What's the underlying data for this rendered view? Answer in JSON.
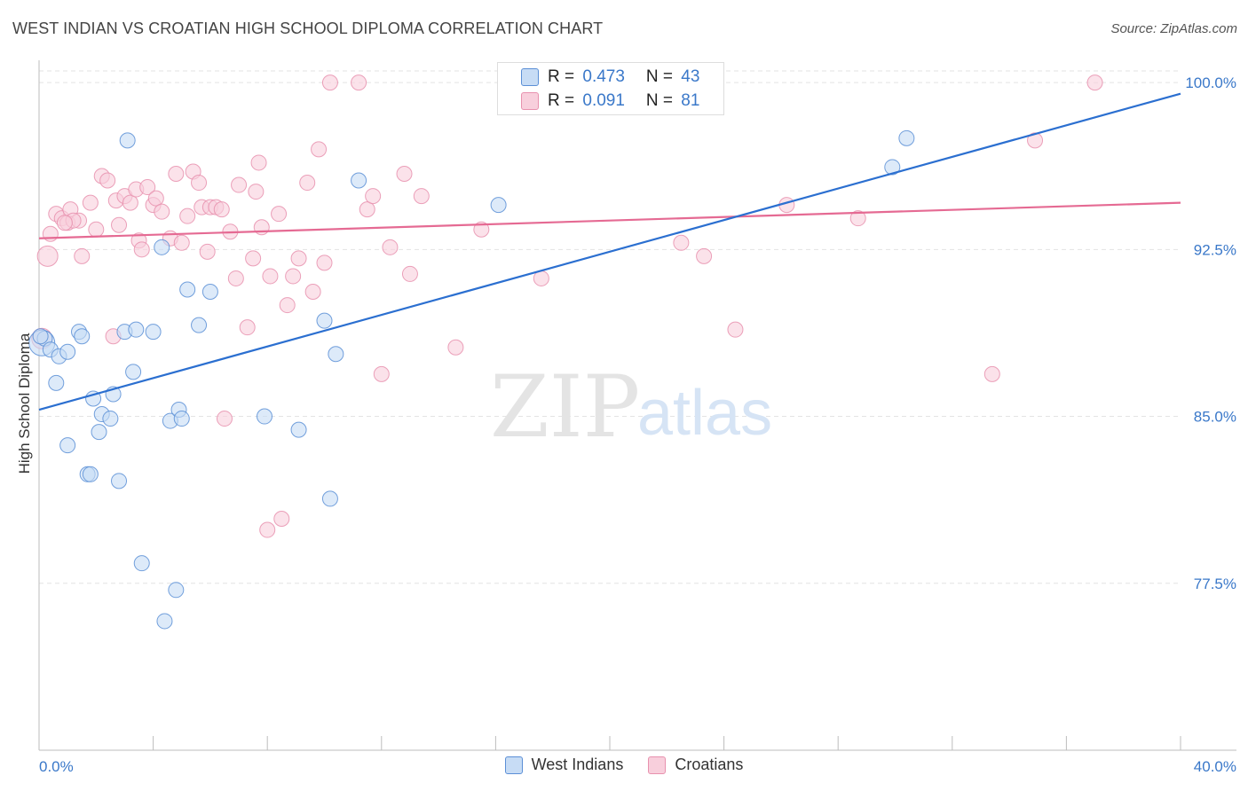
{
  "header": {
    "title": "WEST INDIAN VS CROATIAN HIGH SCHOOL DIPLOMA CORRELATION CHART",
    "source": "Source: ZipAtlas.com"
  },
  "watermark": {
    "zip": "ZIP",
    "atlas": "atlas"
  },
  "legend": {
    "rows": [
      {
        "r_label": "R = ",
        "r_value": "0.473",
        "n_label": "N = ",
        "n_value": "43"
      },
      {
        "r_label": "R = ",
        "r_value": "0.091",
        "n_label": "N = ",
        "n_value": "81"
      }
    ]
  },
  "colors": {
    "west_indians_fill": "#c7dcf5",
    "west_indians_stroke": "#5b8fd6",
    "west_indians_line": "#2b6fd0",
    "croatians_fill": "#f8cfdc",
    "croatians_stroke": "#e891ae",
    "croatians_line": "#e56a93",
    "axis_text": "#3a78c9",
    "grid": "#e3e3e3"
  },
  "chart_data": {
    "type": "scatter",
    "title": "WEST INDIAN VS CROATIAN HIGH SCHOOL DIPLOMA CORRELATION CHART",
    "xlabel": "",
    "ylabel": "High School Diploma",
    "xlim": [
      0.0,
      40.0
    ],
    "ylim": [
      70.0,
      101.0
    ],
    "x_tick_labels": [
      "0.0%",
      "40.0%"
    ],
    "y_ticks": [
      77.5,
      85.0,
      92.5,
      100.0
    ],
    "y_tick_labels": [
      "77.5%",
      "85.0%",
      "92.5%",
      "100.0%"
    ],
    "grid": true,
    "legend_placement": "top-center",
    "series": [
      {
        "name": "West Indians",
        "r": 0.473,
        "n": 43,
        "trend": [
          [
            0.0,
            85.3
          ],
          [
            40.0,
            99.5
          ]
        ],
        "points": [
          [
            0.1,
            88.3,
            3
          ],
          [
            0.2,
            88.5,
            1
          ],
          [
            0.4,
            88.0,
            1
          ],
          [
            0.6,
            86.5,
            1
          ],
          [
            0.7,
            87.7,
            1
          ],
          [
            1.0,
            87.9,
            1
          ],
          [
            1.4,
            88.8,
            1
          ],
          [
            1.5,
            88.6,
            1
          ],
          [
            1.0,
            83.7,
            1
          ],
          [
            1.7,
            82.4,
            1
          ],
          [
            1.8,
            82.4,
            1
          ],
          [
            1.9,
            85.8,
            1
          ],
          [
            2.1,
            84.3,
            1
          ],
          [
            2.2,
            85.1,
            1
          ],
          [
            2.5,
            84.9,
            1
          ],
          [
            2.6,
            86.0,
            1
          ],
          [
            2.8,
            82.1,
            1
          ],
          [
            3.0,
            88.8,
            1
          ],
          [
            3.1,
            97.4,
            1
          ],
          [
            3.3,
            87.0,
            1
          ],
          [
            3.4,
            88.9,
            1
          ],
          [
            3.6,
            78.4,
            1
          ],
          [
            4.0,
            88.8,
            1
          ],
          [
            4.3,
            92.6,
            1
          ],
          [
            4.4,
            75.8,
            1
          ],
          [
            4.6,
            84.8,
            1
          ],
          [
            4.8,
            77.2,
            1
          ],
          [
            4.9,
            85.3,
            1
          ],
          [
            5.0,
            84.9,
            1
          ],
          [
            5.2,
            90.7,
            1
          ],
          [
            5.6,
            89.1,
            1
          ],
          [
            6.0,
            90.6,
            1
          ],
          [
            7.9,
            85.0,
            1
          ],
          [
            9.1,
            84.4,
            1
          ],
          [
            10.0,
            89.3,
            1
          ],
          [
            10.2,
            81.3,
            1
          ],
          [
            10.4,
            87.8,
            1
          ],
          [
            11.2,
            95.6,
            1
          ],
          [
            16.1,
            94.5,
            1
          ],
          [
            18.3,
            99.9,
            1
          ],
          [
            29.9,
            96.2,
            1
          ],
          [
            30.4,
            97.5,
            1
          ],
          [
            0.05,
            88.6,
            1
          ]
        ]
      },
      {
        "name": "Croatians",
        "r": 0.091,
        "n": 81,
        "trend": [
          [
            0.0,
            93.0
          ],
          [
            40.0,
            94.6
          ]
        ],
        "points": [
          [
            0.1,
            88.5,
            2
          ],
          [
            0.3,
            92.2,
            2
          ],
          [
            0.4,
            93.2,
            1
          ],
          [
            0.6,
            94.1,
            1
          ],
          [
            0.8,
            93.9,
            1
          ],
          [
            1.0,
            93.7,
            1
          ],
          [
            1.1,
            94.3,
            1
          ],
          [
            1.4,
            93.8,
            1
          ],
          [
            1.5,
            92.2,
            1
          ],
          [
            1.8,
            94.6,
            1
          ],
          [
            2.0,
            93.4,
            1
          ],
          [
            2.2,
            95.8,
            1
          ],
          [
            2.4,
            95.6,
            1
          ],
          [
            2.6,
            88.6,
            1
          ],
          [
            2.7,
            94.7,
            1
          ],
          [
            2.8,
            93.6,
            1
          ],
          [
            3.0,
            94.9,
            1
          ],
          [
            3.2,
            94.6,
            1
          ],
          [
            3.4,
            95.2,
            1
          ],
          [
            3.5,
            92.9,
            1
          ],
          [
            3.6,
            92.5,
            1
          ],
          [
            3.8,
            95.3,
            1
          ],
          [
            4.0,
            94.5,
            1
          ],
          [
            4.1,
            94.8,
            1
          ],
          [
            4.3,
            94.2,
            1
          ],
          [
            4.6,
            93.0,
            1
          ],
          [
            4.8,
            95.9,
            1
          ],
          [
            5.0,
            92.8,
            1
          ],
          [
            5.2,
            94.0,
            1
          ],
          [
            5.4,
            96.0,
            1
          ],
          [
            5.6,
            95.5,
            1
          ],
          [
            5.7,
            94.4,
            1
          ],
          [
            5.9,
            92.4,
            1
          ],
          [
            6.0,
            94.4,
            1
          ],
          [
            6.2,
            94.4,
            1
          ],
          [
            6.4,
            94.3,
            1
          ],
          [
            6.5,
            84.9,
            1
          ],
          [
            6.7,
            93.3,
            1
          ],
          [
            6.9,
            91.2,
            1
          ],
          [
            7.0,
            95.4,
            1
          ],
          [
            7.3,
            89.0,
            1
          ],
          [
            7.5,
            92.1,
            1
          ],
          [
            7.6,
            95.1,
            1
          ],
          [
            7.7,
            96.4,
            1
          ],
          [
            7.8,
            93.5,
            1
          ],
          [
            8.0,
            79.9,
            1
          ],
          [
            8.1,
            91.3,
            1
          ],
          [
            8.4,
            94.1,
            1
          ],
          [
            8.5,
            80.4,
            1
          ],
          [
            8.7,
            90.0,
            1
          ],
          [
            8.9,
            91.3,
            1
          ],
          [
            9.1,
            92.1,
            1
          ],
          [
            9.4,
            95.5,
            1
          ],
          [
            9.6,
            90.6,
            1
          ],
          [
            9.8,
            97.0,
            1
          ],
          [
            10.0,
            91.9,
            1
          ],
          [
            10.2,
            100.0,
            1
          ],
          [
            11.2,
            100.0,
            1
          ],
          [
            11.5,
            94.3,
            1
          ],
          [
            11.7,
            94.9,
            1
          ],
          [
            12.0,
            86.9,
            1
          ],
          [
            12.3,
            92.6,
            1
          ],
          [
            12.8,
            95.9,
            1
          ],
          [
            13.0,
            91.4,
            1
          ],
          [
            13.4,
            94.9,
            1
          ],
          [
            14.6,
            88.1,
            1
          ],
          [
            15.5,
            93.4,
            1
          ],
          [
            16.9,
            99.1,
            1
          ],
          [
            17.6,
            91.2,
            1
          ],
          [
            18.3,
            100.0,
            1
          ],
          [
            21.0,
            100.0,
            1
          ],
          [
            22.5,
            92.8,
            1
          ],
          [
            23.3,
            92.2,
            1
          ],
          [
            24.4,
            88.9,
            1
          ],
          [
            26.2,
            94.5,
            1
          ],
          [
            28.7,
            93.9,
            1
          ],
          [
            33.4,
            86.9,
            1
          ],
          [
            34.9,
            97.4,
            1
          ],
          [
            37.0,
            100.0,
            1
          ],
          [
            1.2,
            93.8,
            1
          ],
          [
            0.9,
            93.7,
            1
          ]
        ]
      }
    ]
  }
}
